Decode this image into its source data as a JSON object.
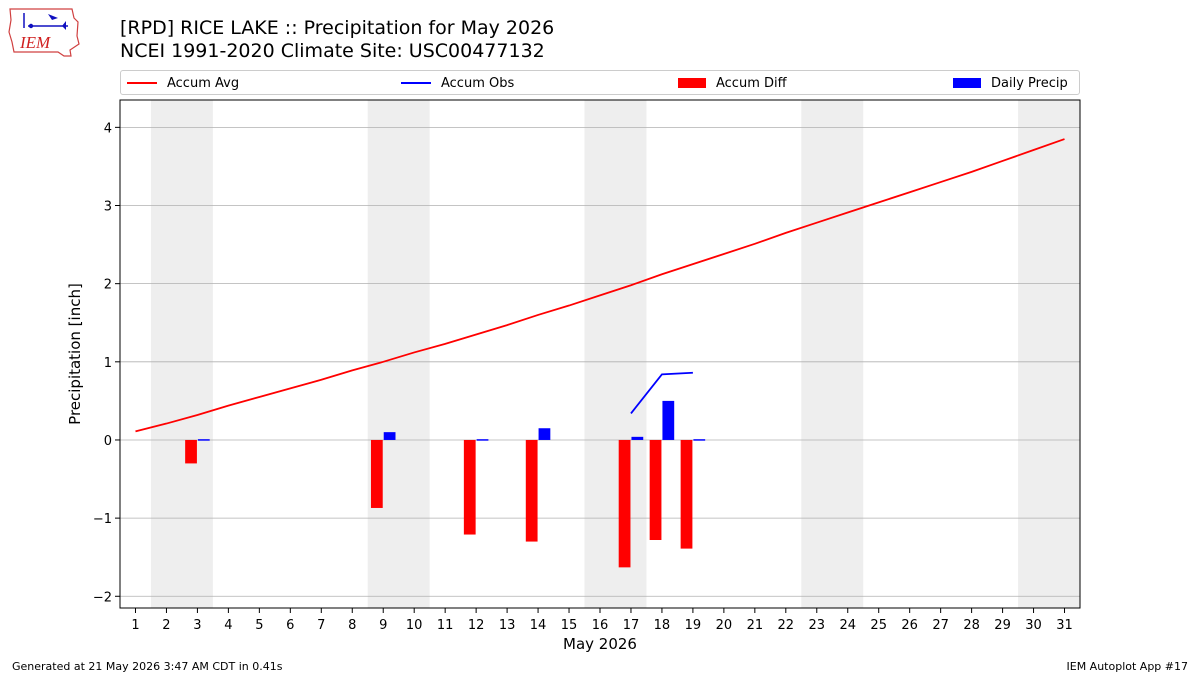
{
  "header": {
    "logo_text": "IEM",
    "title_line1": "[RPD] RICE LAKE :: Precipitation for May 2026",
    "title_line2": "NCEI 1991-2020 Climate Site: USC00477132"
  },
  "legend": {
    "items": [
      {
        "label": "Accum Avg",
        "kind": "line",
        "color": "#ff0000"
      },
      {
        "label": "Accum Obs",
        "kind": "line",
        "color": "#0000ff"
      },
      {
        "label": "Accum Diff",
        "kind": "box",
        "color": "#ff0000"
      },
      {
        "label": "Daily Precip",
        "kind": "box",
        "color": "#0000ff"
      }
    ]
  },
  "footer": {
    "left": "Generated at 21 May 2026 3:47 AM CDT in 0.41s",
    "right": "IEM Autoplot App #17"
  },
  "chart_data": {
    "type": "bar",
    "title": "[RPD] RICE LAKE :: Precipitation for May 2026",
    "subtitle": "NCEI 1991-2020 Climate Site: USC00477132",
    "xlabel": "May 2026",
    "ylabel": "Precipitation [inch]",
    "xlim": [
      0.5,
      31.5
    ],
    "ylim": [
      -2.15,
      4.35
    ],
    "x_ticks": [
      1,
      2,
      3,
      4,
      5,
      6,
      7,
      8,
      9,
      10,
      11,
      12,
      13,
      14,
      15,
      16,
      17,
      18,
      19,
      20,
      21,
      22,
      23,
      24,
      25,
      26,
      27,
      28,
      29,
      30,
      31
    ],
    "y_ticks": [
      -2,
      -1,
      0,
      1,
      2,
      3,
      4
    ],
    "y_tick_labels": [
      "−2",
      "−1",
      "0",
      "1",
      "2",
      "3",
      "4"
    ],
    "grid": "horizontal",
    "legend_position": "top",
    "weekend_shading": [
      [
        2,
        3
      ],
      [
        9,
        10
      ],
      [
        16,
        17
      ],
      [
        23,
        24
      ],
      [
        30,
        31
      ]
    ],
    "colors": {
      "avg": "#ff0000",
      "obs": "#0000ff",
      "diff": "#ff0000",
      "daily": "#0000ff",
      "shade": "#eeeeee",
      "grid": "#b0b0b0"
    },
    "accum_avg": {
      "name": "Accum Avg",
      "x": [
        1,
        2,
        3,
        4,
        5,
        6,
        7,
        8,
        9,
        10,
        11,
        12,
        13,
        14,
        15,
        16,
        17,
        18,
        19,
        20,
        21,
        22,
        23,
        24,
        25,
        26,
        27,
        28,
        29,
        30,
        31
      ],
      "values": [
        0.11,
        0.21,
        0.32,
        0.44,
        0.55,
        0.66,
        0.77,
        0.89,
        1.0,
        1.12,
        1.23,
        1.35,
        1.47,
        1.6,
        1.72,
        1.85,
        1.98,
        2.12,
        2.25,
        2.38,
        2.51,
        2.65,
        2.78,
        2.91,
        3.04,
        3.17,
        3.3,
        3.43,
        3.57,
        3.71,
        3.85
      ]
    },
    "accum_obs": {
      "name": "Accum Obs",
      "x": [
        17,
        18,
        19
      ],
      "values": [
        0.34,
        0.84,
        0.86
      ]
    },
    "accum_diff": {
      "name": "Accum Diff",
      "x": [
        3,
        9,
        12,
        14,
        17,
        18,
        19
      ],
      "values": [
        -0.3,
        -0.87,
        -1.21,
        -1.3,
        -1.63,
        -1.28,
        -1.39
      ]
    },
    "daily_precip": {
      "name": "Daily Precip",
      "x": [
        3,
        9,
        12,
        14,
        17,
        18,
        19
      ],
      "values": [
        0.01,
        0.1,
        0.01,
        0.15,
        0.04,
        0.5,
        0.01
      ]
    }
  }
}
